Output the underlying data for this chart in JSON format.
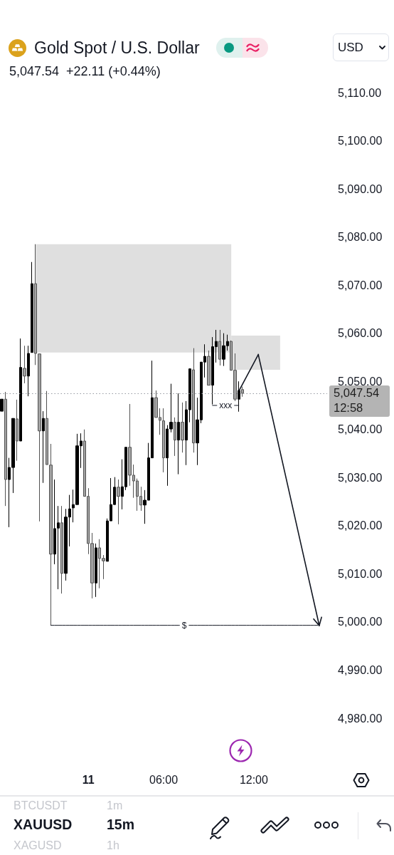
{
  "chart_data": {
    "type": "candlestick",
    "title": "Gold Spot / U.S. Dollar",
    "subtitle": "5,047.54  +22.11 (+0.44%)",
    "categories": [
      null,
      null,
      null,
      null,
      null,
      null,
      null,
      null,
      null,
      null,
      null,
      null,
      null,
      null,
      null,
      null,
      null,
      null,
      null,
      null,
      null,
      null,
      null,
      "11",
      null,
      null,
      null,
      null,
      null,
      null,
      null,
      null,
      null,
      null,
      null,
      null,
      null,
      null,
      null,
      null,
      null,
      null,
      null,
      "06:00",
      null,
      null,
      null,
      null,
      null,
      null,
      null,
      null,
      null,
      null,
      null,
      null,
      null,
      null,
      null,
      null,
      null,
      null,
      null,
      null,
      null,
      null,
      null,
      "12:00",
      null,
      null,
      null,
      null,
      null,
      null,
      null,
      null,
      null,
      null,
      null,
      null,
      null,
      null,
      null,
      null,
      null,
      null,
      null
    ],
    "ohlc": [
      [
        5043.8,
        5046.3,
        5043.8,
        5046.3
      ],
      [
        5046.3,
        5047.8,
        5024.1,
        5029.6
      ],
      [
        5029.6,
        5034.1,
        5019.7,
        5032.1
      ],
      [
        5032.1,
        5042.3,
        5026.8,
        5042.3
      ],
      [
        5042.2,
        5046.2,
        5033.5,
        5037.6
      ],
      [
        5037.6,
        5058.9,
        5037.6,
        5052.9
      ],
      [
        5052.7,
        5057.4,
        5049.6,
        5051.1
      ],
      [
        5051.1,
        5057.4,
        5046.9,
        5055.8
      ],
      [
        5056.0,
        5074.8,
        5056.0,
        5070.3
      ],
      [
        5070.3,
        5078.5,
        5053.4,
        5055.8
      ],
      [
        5055.7,
        5055.7,
        5020.9,
        5039.7
      ],
      [
        5039.7,
        5043.8,
        5028.9,
        5042.3
      ],
      [
        5042.3,
        5048.0,
        5032.7,
        5032.7
      ],
      [
        5032.6,
        5037.0,
        4999.3,
        5014.1
      ],
      [
        5014.1,
        5029.6,
        5012.0,
        5019.4
      ],
      [
        5019.5,
        5024.1,
        5006.8,
        5020.6
      ],
      [
        5020.6,
        5024.1,
        5005.9,
        5010.1
      ],
      [
        5010.1,
        5023.5,
        5008.6,
        5021.8
      ],
      [
        5021.8,
        5026.4,
        5015.7,
        5023.5
      ],
      [
        5023.7,
        5027.5,
        5020.7,
        5024.4
      ],
      [
        5024.4,
        5039.1,
        5024.4,
        5036.6
      ],
      [
        5036.6,
        5039.2,
        5032.0,
        5037.6
      ],
      [
        5037.6,
        5040.0,
        5026.1,
        5026.1
      ],
      [
        5026.1,
        5027.8,
        5014.1,
        5016.3
      ],
      [
        5016.3,
        5018.5,
        5004.9,
        5008.1
      ],
      [
        5008.1,
        5016.3,
        5005.2,
        5015.4
      ],
      [
        5015.4,
        5017.2,
        5007.0,
        5013.2
      ],
      [
        5013.2,
        5013.9,
        5008.9,
        5012.7
      ],
      [
        5012.6,
        5021.5,
        5012.6,
        5021.0
      ],
      [
        5021.0,
        5029.9,
        5021.0,
        5024.4
      ],
      [
        5024.4,
        5030.1,
        5024.4,
        5028.0
      ],
      [
        5028.0,
        5029.6,
        5020.3,
        5026.1
      ],
      [
        5026.1,
        5033.8,
        5023.4,
        5028.1
      ],
      [
        5028.1,
        5036.3,
        5027.4,
        5036.3
      ],
      [
        5036.3,
        5045.3,
        5028.3,
        5030.5
      ],
      [
        5030.5,
        5032.7,
        5025.8,
        5029.3
      ],
      [
        5029.3,
        5029.8,
        5023.1,
        5026.1
      ],
      [
        5026.1,
        5028.1,
        5023.1,
        5024.3
      ],
      [
        5024.3,
        5027.4,
        5020.4,
        5025.3
      ],
      [
        5025.3,
        5037.2,
        5025.3,
        5034.1
      ],
      [
        5034.1,
        5054.3,
        5034.1,
        5046.6
      ],
      [
        5046.6,
        5048.1,
        5042.5,
        5042.5
      ],
      [
        5042.5,
        5044.4,
        5038.9,
        5041.9
      ],
      [
        5041.8,
        5044.4,
        5031.1,
        5034.1
      ],
      [
        5034.1,
        5040.9,
        5028.3,
        5040.1
      ],
      [
        5040.1,
        5049.5,
        5039.4,
        5041.5
      ],
      [
        5041.5,
        5042.5,
        5034.5,
        5037.8
      ],
      [
        5037.8,
        5047.5,
        5030.7,
        5041.5
      ],
      [
        5041.5,
        5045.6,
        5035.2,
        5037.8
      ],
      [
        5037.8,
        5045.9,
        5032.6,
        5044.1
      ],
      [
        5044.1,
        5052.7,
        5041.5,
        5052.6
      ],
      [
        5052.4,
        5056.9,
        5035.2,
        5037.2
      ],
      [
        5037.2,
        5046.6,
        5032.6,
        5042.0
      ],
      [
        5042.0,
        5054.0,
        5041.3,
        5054.0
      ],
      [
        5054.0,
        5057.7,
        5050.8,
        5055.2
      ],
      [
        5055.2,
        5056.4,
        5049.2,
        5049.2
      ],
      [
        5049.2,
        5059.2,
        5045.2,
        5057.2
      ],
      [
        5057.2,
        5060.7,
        5053.9,
        5058.3
      ],
      [
        5058.3,
        5060.7,
        5053.3,
        5054.6
      ],
      [
        5054.6,
        5060.0,
        5053.2,
        5057.4
      ],
      [
        5057.4,
        5059.7,
        5056.4,
        5058.3
      ],
      [
        5058.3,
        5058.5,
        5052.3,
        5052.3
      ],
      [
        5052.3,
        5055.8,
        5045.9,
        5046.3
      ],
      [
        5046.3,
        5050.0,
        5043.7,
        5048.1
      ],
      [
        5048.3,
        5048.9,
        5046.8,
        5047.54
      ],
      null,
      null,
      null,
      null,
      null,
      null,
      null,
      null,
      null,
      null,
      null,
      null,
      null,
      null,
      null,
      null,
      null,
      null,
      null,
      null,
      null,
      null
    ],
    "colors": [
      "#000000",
      "#a3a3a3",
      "#000000",
      "#000000",
      "#a3a3a3",
      "#000000",
      "#a3a3a3",
      "#000000",
      "#000000",
      "#a3a3a3",
      "#a3a3a3",
      "#000000",
      "#a3a3a3",
      "#a3a3a3",
      "#000000",
      "#000000",
      "#a3a3a3",
      "#000000",
      "#000000",
      "#000000",
      "#000000",
      "#000000",
      "#a3a3a3",
      "#a3a3a3",
      "#a3a3a3",
      "#000000",
      "#a3a3a3",
      "#a3a3a3",
      "#000000",
      "#000000",
      "#000000",
      "#a3a3a3",
      "#000000",
      "#000000",
      "#a3a3a3",
      "#a3a3a3",
      "#a3a3a3",
      "#a3a3a3",
      "#000000",
      "#000000",
      "#000000",
      "#a3a3a3",
      "#a3a3a3",
      "#a3a3a3",
      "#000000",
      "#000000",
      "#a3a3a3",
      "#000000",
      "#a3a3a3",
      "#000000",
      "#000000",
      "#a3a3a3",
      "#000000",
      "#000000",
      "#000000",
      "#a3a3a3",
      "#000000",
      "#000000",
      "#a3a3a3",
      "#000000",
      "#000000",
      "#a3a3a3",
      "#a3a3a3",
      "#000000",
      "#a3a3a3",
      null,
      null,
      null,
      null,
      null,
      null,
      null,
      null,
      null,
      null,
      null,
      null,
      null,
      null,
      null,
      null,
      null,
      null,
      null,
      null,
      null,
      null
    ],
    "series": [
      {
        "type": "line",
        "name": "$",
        "color": "#131722",
        "values": [
          null,
          null,
          null,
          null,
          null,
          null,
          null,
          null,
          null,
          null,
          null,
          null,
          null,
          4999.3,
          4999.3,
          4999.3,
          4999.3,
          4999.3,
          4999.3,
          4999.3,
          4999.3,
          4999.3,
          4999.3,
          4999.3,
          4999.3,
          4999.3,
          4999.3,
          4999.3,
          4999.3,
          4999.3,
          4999.3,
          4999.3,
          4999.3,
          4999.3,
          4999.3,
          4999.3,
          4999.3,
          4999.3,
          4999.3,
          4999.3,
          4999.3,
          4999.3,
          4999.3,
          4999.3,
          4999.3,
          4999.3,
          4999.3,
          4999.3,
          4999.3,
          4999.3,
          4999.3,
          4999.3,
          4999.3,
          4999.3,
          4999.3,
          4999.3,
          4999.3,
          4999.3,
          4999.3,
          4999.3,
          4999.3,
          4999.3,
          4999.3,
          4999.3,
          4999.3,
          4999.3,
          4999.3,
          4999.3,
          4999.3,
          4999.3,
          4999.3,
          4999.3,
          4999.3,
          4999.3,
          4999.3,
          4999.3,
          4999.3,
          4999.3,
          4999.3,
          4999.3,
          4999.3,
          4999.3,
          4999.3,
          4999.3,
          4999.3,
          null,
          null
        ]
      },
      {
        "type": "line",
        "name": "xxx",
        "color": "#131722",
        "values": [
          null,
          null,
          null,
          null,
          null,
          null,
          null,
          null,
          null,
          null,
          null,
          null,
          null,
          null,
          null,
          null,
          null,
          null,
          null,
          null,
          null,
          null,
          null,
          null,
          null,
          null,
          null,
          null,
          null,
          null,
          null,
          null,
          null,
          null,
          null,
          null,
          null,
          null,
          null,
          null,
          null,
          null,
          null,
          null,
          null,
          null,
          null,
          null,
          null,
          null,
          null,
          null,
          null,
          null,
          null,
          null,
          5045.0,
          5045.0,
          5045.0,
          5045.0,
          5045.0,
          5045.0,
          5045.0,
          5045.0,
          null,
          null,
          null,
          null,
          null,
          null,
          null,
          null,
          null,
          null,
          null,
          null,
          null,
          null,
          null,
          null,
          null,
          null,
          null,
          null,
          null,
          null,
          null
        ]
      }
    ],
    "bands": [
      {
        "axis": "y",
        "from": 5056.0,
        "to": 5078.5,
        "color": "#dfdfdf"
      },
      {
        "axis": "y",
        "from": 5052.4,
        "to": 5059.5,
        "color": "#dfdfdf"
      }
    ],
    "ylim": [
      4980,
      5110
    ],
    "yticks": [
      {
        "value": 4980,
        "label": "4,980.00"
      },
      {
        "value": 4990,
        "label": "4,990.00"
      },
      {
        "value": 5000,
        "label": "5,000.00"
      },
      {
        "value": 5010,
        "label": "5,010.00"
      },
      {
        "value": 5020,
        "label": "5,020.00"
      },
      {
        "value": 5030,
        "label": "5,030.00"
      },
      {
        "value": 5040,
        "label": "5,040.00"
      },
      {
        "value": 5050,
        "label": "5,050.00"
      },
      {
        "value": 5060,
        "label": "5,060.00"
      },
      {
        "value": 5070,
        "label": "5,070.00"
      },
      {
        "value": 5080,
        "label": "5,080.00"
      },
      {
        "value": 5090,
        "label": "5,090.00"
      },
      {
        "value": 5100,
        "label": "5,100.00"
      },
      {
        "value": 5110,
        "label": "5,110.00"
      }
    ],
    "ref_lines": [
      {
        "axis": "y",
        "value": 5047.54,
        "label": "5,047.54",
        "line_style": "dotted",
        "color": "#9598a1"
      }
    ],
    "annotations": [
      "USD",
      "12:58",
      "BTCUSDT",
      "1m",
      "XAUUSD",
      "15m",
      "XAGUSD",
      "1h"
    ]
  }
}
